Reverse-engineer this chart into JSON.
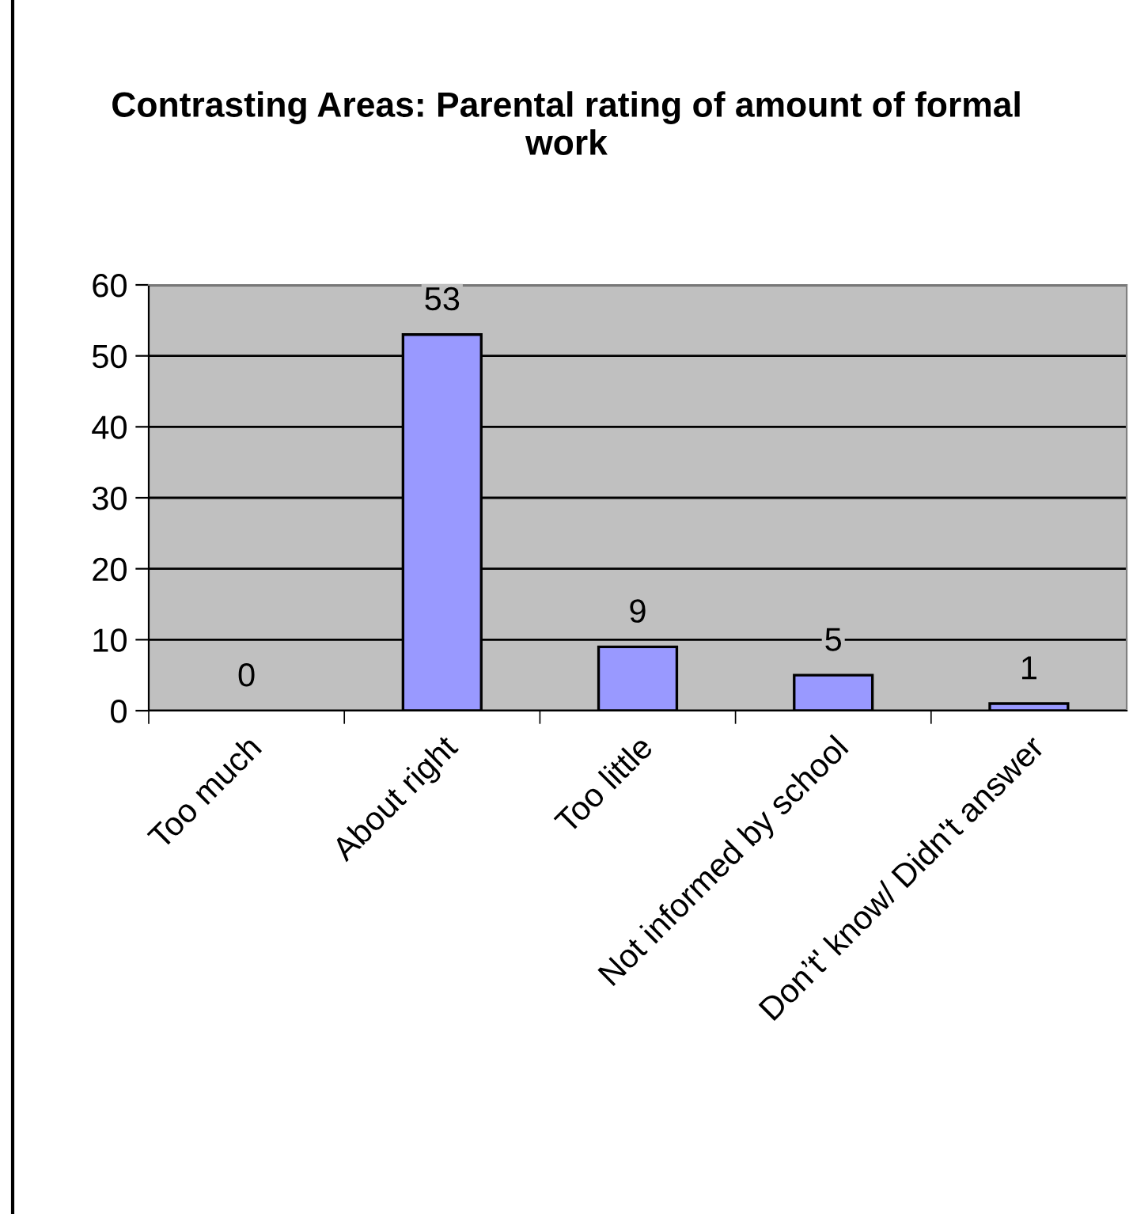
{
  "chart_data": {
    "type": "bar",
    "title": "Contrasting Areas: Parental rating of amount of formal work",
    "categories": [
      "Too much",
      "About right",
      "Too little",
      "Not informed by school",
      "Don’t' know/ Didn't answer"
    ],
    "values": [
      0,
      53,
      9,
      5,
      1
    ],
    "color": "#9999ff",
    "ylim": [
      0,
      60
    ],
    "yticks": [
      0,
      10,
      20,
      30,
      40,
      50,
      60
    ],
    "grid": "y",
    "data_labels": true,
    "legend": false
  }
}
